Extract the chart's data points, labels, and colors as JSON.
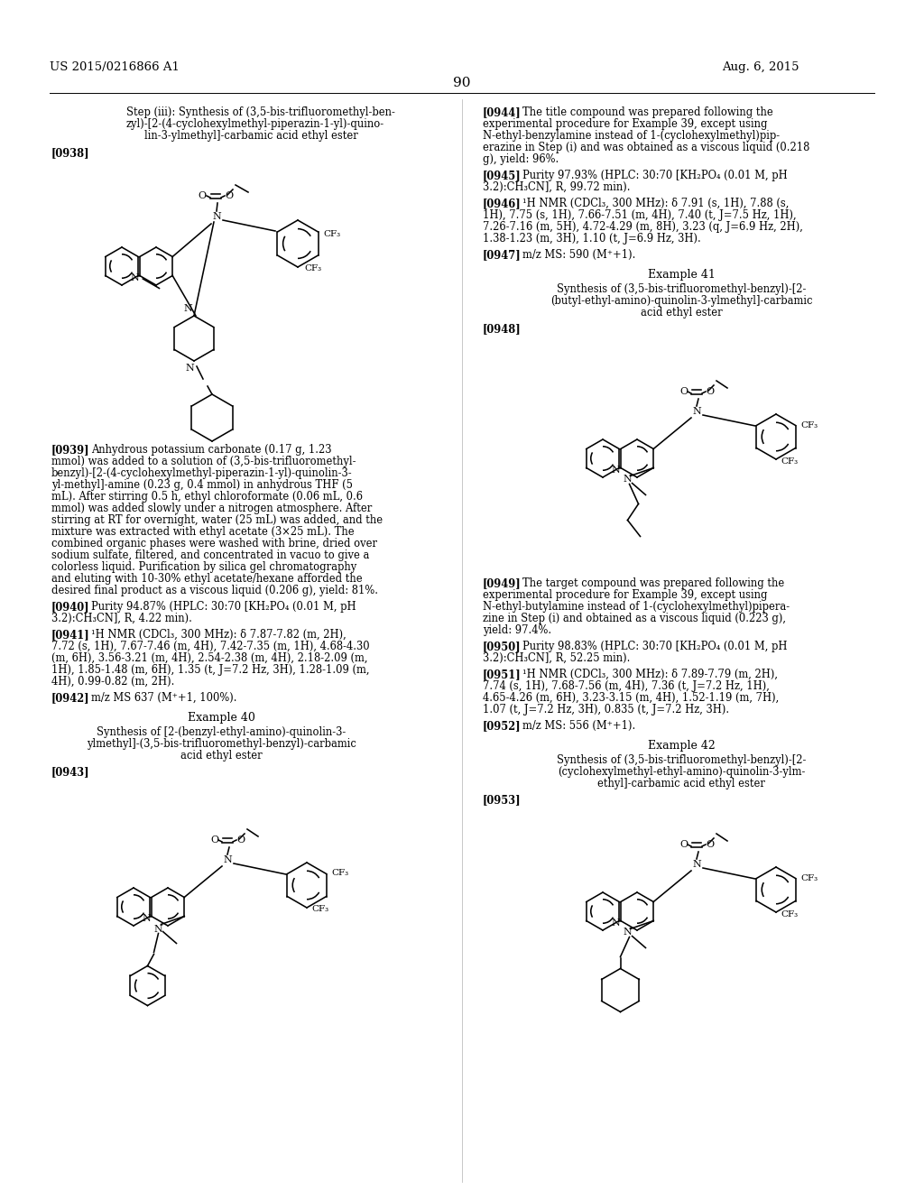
{
  "bg": "#ffffff",
  "header_left": "US 2015/0216866 A1",
  "header_right": "Aug. 6, 2015",
  "page_num": "90"
}
